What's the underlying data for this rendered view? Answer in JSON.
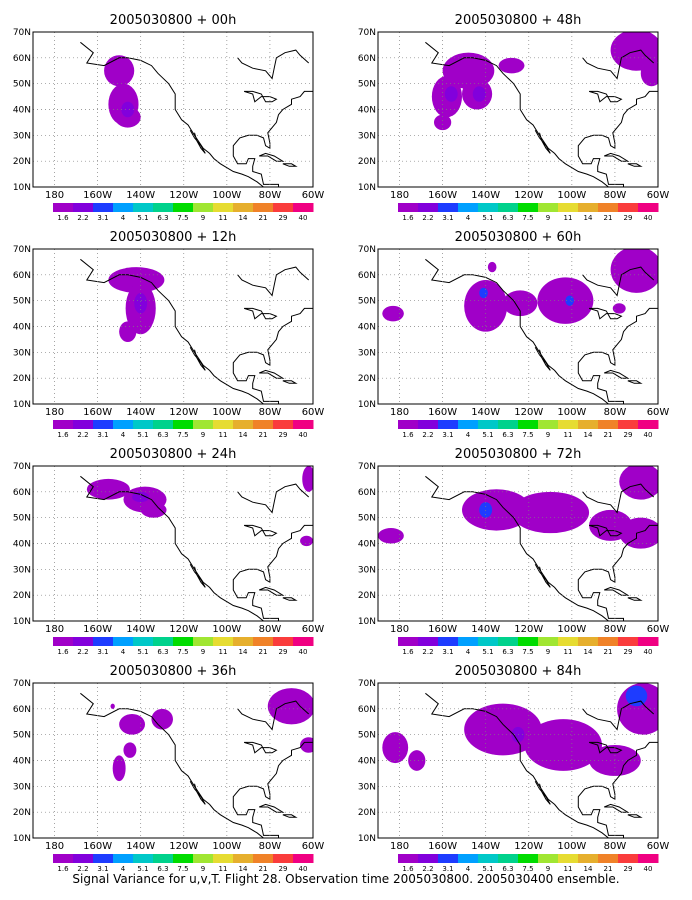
{
  "figure": {
    "caption": "Signal Variance for u,v,T. Flight 28. Observation time 2005030800. 2005030400 ensemble.",
    "lat_labels": [
      "70N",
      "60N",
      "50N",
      "40N",
      "30N",
      "20N",
      "10N"
    ],
    "lon_labels": [
      "180",
      "160W",
      "140W",
      "120W",
      "100W",
      "80W",
      "60W"
    ],
    "lat_range": [
      10,
      70
    ],
    "lon_range": [
      -190,
      -60
    ],
    "colorbar": {
      "levels": [
        "1.6",
        "2.2",
        "3.1",
        "4",
        "5.1",
        "6.3",
        "7.5",
        "9",
        "11",
        "14",
        "21",
        "29",
        "40"
      ],
      "colors": [
        "#a000c8",
        "#8200dc",
        "#1e3cff",
        "#00a0ff",
        "#00c8c8",
        "#00d28c",
        "#00dc00",
        "#a0e632",
        "#e6dc32",
        "#e6af2d",
        "#f08228",
        "#fa3c3c",
        "#f00082"
      ]
    },
    "colors": {
      "land": "#000000",
      "fill_low": "#a000c8",
      "fill_mid": "#8200dc",
      "fill_high": "#1e3cff",
      "grid": "#7f7f7f"
    }
  },
  "panels": [
    {
      "id": "00h",
      "title": "2005030800 + 00h",
      "blobs": [
        {
          "lon": -148,
          "lat": 42,
          "rlon": 7,
          "rlat": 8,
          "level": 0
        },
        {
          "lon": -150,
          "lat": 55,
          "rlon": 7,
          "rlat": 6,
          "level": 0
        },
        {
          "lon": -146,
          "lat": 37,
          "rlon": 6,
          "rlat": 4,
          "level": 0
        },
        {
          "lon": -146,
          "lat": 40,
          "rlon": 3,
          "rlat": 3,
          "level": 1
        }
      ]
    },
    {
      "id": "48h",
      "title": "2005030800 + 48h",
      "blobs": [
        {
          "lon": -148,
          "lat": 55,
          "rlon": 12,
          "rlat": 7,
          "level": 0
        },
        {
          "lon": -158,
          "lat": 45,
          "rlon": 7,
          "rlat": 8,
          "level": 0
        },
        {
          "lon": -144,
          "lat": 46,
          "rlon": 7,
          "rlat": 6,
          "level": 0
        },
        {
          "lon": -160,
          "lat": 35,
          "rlon": 4,
          "rlat": 3,
          "level": 0
        },
        {
          "lon": -128,
          "lat": 57,
          "rlon": 6,
          "rlat": 3,
          "level": 0
        },
        {
          "lon": -70,
          "lat": 63,
          "rlon": 12,
          "rlat": 8,
          "level": 0
        },
        {
          "lon": -63,
          "lat": 54,
          "rlon": 5,
          "rlat": 5,
          "level": 0
        },
        {
          "lon": -156,
          "lat": 46,
          "rlon": 3,
          "rlat": 3,
          "level": 1
        },
        {
          "lon": -143,
          "lat": 46,
          "rlon": 3,
          "rlat": 3,
          "level": 1
        }
      ]
    },
    {
      "id": "12h",
      "title": "2005030800 + 12h",
      "blobs": [
        {
          "lon": -142,
          "lat": 58,
          "rlon": 13,
          "rlat": 5,
          "level": 0
        },
        {
          "lon": -140,
          "lat": 47,
          "rlon": 7,
          "rlat": 10,
          "level": 0
        },
        {
          "lon": -146,
          "lat": 38,
          "rlon": 4,
          "rlat": 4,
          "level": 0
        },
        {
          "lon": -140,
          "lat": 49,
          "rlon": 3,
          "rlat": 4,
          "level": 1
        }
      ]
    },
    {
      "id": "60h",
      "title": "2005030800 + 60h",
      "blobs": [
        {
          "lon": -140,
          "lat": 48,
          "rlon": 10,
          "rlat": 10,
          "level": 0
        },
        {
          "lon": -103,
          "lat": 50,
          "rlon": 13,
          "rlat": 9,
          "level": 0
        },
        {
          "lon": -124,
          "lat": 49,
          "rlon": 8,
          "rlat": 5,
          "level": 0
        },
        {
          "lon": -183,
          "lat": 45,
          "rlon": 5,
          "rlat": 3,
          "level": 0
        },
        {
          "lon": -137,
          "lat": 63,
          "rlon": 2,
          "rlat": 2,
          "level": 0
        },
        {
          "lon": -70,
          "lat": 62,
          "rlon": 12,
          "rlat": 9,
          "level": 0
        },
        {
          "lon": -78,
          "lat": 47,
          "rlon": 3,
          "rlat": 2,
          "level": 0
        },
        {
          "lon": -141,
          "lat": 53,
          "rlon": 2,
          "rlat": 2,
          "level": 2
        },
        {
          "lon": -101,
          "lat": 50,
          "rlon": 2,
          "rlat": 2,
          "level": 2
        }
      ]
    },
    {
      "id": "24h",
      "title": "2005030800 + 24h",
      "blobs": [
        {
          "lon": -155,
          "lat": 61,
          "rlon": 10,
          "rlat": 4,
          "level": 0
        },
        {
          "lon": -138,
          "lat": 57,
          "rlon": 10,
          "rlat": 5,
          "level": 0
        },
        {
          "lon": -134,
          "lat": 53,
          "rlon": 6,
          "rlat": 3,
          "level": 0
        },
        {
          "lon": -63,
          "lat": 41,
          "rlon": 3,
          "rlat": 2,
          "level": 0
        },
        {
          "lon": -62,
          "lat": 65,
          "rlon": 3,
          "rlat": 5,
          "level": 0
        },
        {
          "lon": -140,
          "lat": 58,
          "rlon": 4,
          "rlat": 2,
          "level": 1
        }
      ]
    },
    {
      "id": "72h",
      "title": "2005030800 + 72h",
      "blobs": [
        {
          "lon": -135,
          "lat": 53,
          "rlon": 16,
          "rlat": 8,
          "level": 0
        },
        {
          "lon": -110,
          "lat": 52,
          "rlon": 18,
          "rlat": 8,
          "level": 0
        },
        {
          "lon": -82,
          "lat": 47,
          "rlon": 10,
          "rlat": 6,
          "level": 0
        },
        {
          "lon": -68,
          "lat": 44,
          "rlon": 10,
          "rlat": 6,
          "level": 0
        },
        {
          "lon": -184,
          "lat": 43,
          "rlon": 6,
          "rlat": 3,
          "level": 0
        },
        {
          "lon": -68,
          "lat": 64,
          "rlon": 10,
          "rlat": 7,
          "level": 0
        },
        {
          "lon": -140,
          "lat": 53,
          "rlon": 3,
          "rlat": 3,
          "level": 2
        }
      ]
    },
    {
      "id": "36h",
      "title": "2005030800 + 36h",
      "blobs": [
        {
          "lon": -130,
          "lat": 56,
          "rlon": 5,
          "rlat": 4,
          "level": 0
        },
        {
          "lon": -144,
          "lat": 54,
          "rlon": 6,
          "rlat": 4,
          "level": 0
        },
        {
          "lon": -145,
          "lat": 44,
          "rlon": 3,
          "rlat": 3,
          "level": 0
        },
        {
          "lon": -150,
          "lat": 37,
          "rlon": 3,
          "rlat": 5,
          "level": 0
        },
        {
          "lon": -153,
          "lat": 61,
          "rlon": 1,
          "rlat": 1,
          "level": 0
        },
        {
          "lon": -70,
          "lat": 61,
          "rlon": 11,
          "rlat": 7,
          "level": 0
        },
        {
          "lon": -62,
          "lat": 46,
          "rlon": 4,
          "rlat": 3,
          "level": 0
        }
      ]
    },
    {
      "id": "84h",
      "title": "2005030800 + 84h",
      "blobs": [
        {
          "lon": -132,
          "lat": 52,
          "rlon": 18,
          "rlat": 10,
          "level": 0
        },
        {
          "lon": -104,
          "lat": 46,
          "rlon": 18,
          "rlat": 10,
          "level": 0
        },
        {
          "lon": -80,
          "lat": 40,
          "rlon": 12,
          "rlat": 6,
          "level": 0
        },
        {
          "lon": -67,
          "lat": 60,
          "rlon": 12,
          "rlat": 10,
          "level": 0
        },
        {
          "lon": -182,
          "lat": 45,
          "rlon": 6,
          "rlat": 6,
          "level": 0
        },
        {
          "lon": -172,
          "lat": 40,
          "rlon": 4,
          "rlat": 4,
          "level": 0
        },
        {
          "lon": -70,
          "lat": 65,
          "rlon": 5,
          "rlat": 4,
          "level": 2
        },
        {
          "lon": -125,
          "lat": 50,
          "rlon": 3,
          "rlat": 3,
          "level": 1
        }
      ]
    }
  ]
}
